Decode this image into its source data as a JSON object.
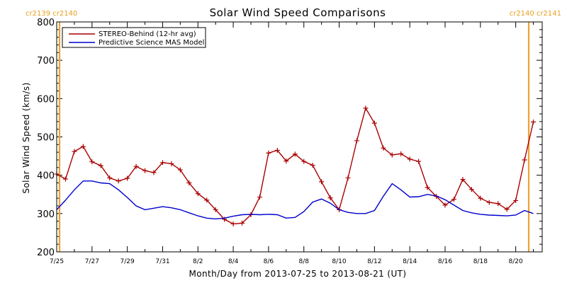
{
  "chart_data": {
    "type": "line",
    "title": "Solar Wind Speed Comparisons",
    "xlabel": "Month/Day from 2013-07-25 to 2013-08-21 (UT)",
    "ylabel": "Solar Wind Speed (km/s)",
    "x_range": [
      "2013-07-25",
      "2013-08-21"
    ],
    "ylim": [
      200,
      800
    ],
    "yticks": [
      200,
      300,
      400,
      500,
      600,
      700,
      800
    ],
    "xtick_dates": [
      "2013-07-25",
      "2013-07-27",
      "2013-07-29",
      "2013-07-31",
      "2013-08-02",
      "2013-08-04",
      "2013-08-06",
      "2013-08-08",
      "2013-08-10",
      "2013-08-12",
      "2013-08-14",
      "2013-08-16",
      "2013-08-18",
      "2013-08-20"
    ],
    "xtick_labels": [
      "7/25",
      "7/27",
      "7/29",
      "7/31",
      "8/2",
      "8/4",
      "8/6",
      "8/8",
      "8/10",
      "8/12",
      "8/14",
      "8/16",
      "8/18",
      "8/20"
    ],
    "carrington_markers": [
      {
        "date": "2013-07-25",
        "label": "cr2139 cr2140",
        "position": "left"
      },
      {
        "date": "2013-08-21",
        "label": "cr2140 cr2141",
        "position": "right"
      }
    ],
    "legend_position": "top-left",
    "series": [
      {
        "name": "STEREO-Behind (12-hr avg)",
        "color": "#aa0000",
        "markers": "plus",
        "x": [
          "2013-07-25 00:00",
          "2013-07-25 12:00",
          "2013-07-26 00:00",
          "2013-07-26 12:00",
          "2013-07-27 00:00",
          "2013-07-27 12:00",
          "2013-07-28 00:00",
          "2013-07-28 12:00",
          "2013-07-29 00:00",
          "2013-07-29 12:00",
          "2013-07-30 00:00",
          "2013-07-30 12:00",
          "2013-07-31 00:00",
          "2013-07-31 12:00",
          "2013-08-01 00:00",
          "2013-08-01 12:00",
          "2013-08-02 00:00",
          "2013-08-02 12:00",
          "2013-08-03 00:00",
          "2013-08-03 12:00",
          "2013-08-04 00:00",
          "2013-08-04 12:00",
          "2013-08-05 00:00",
          "2013-08-05 12:00",
          "2013-08-06 00:00",
          "2013-08-06 12:00",
          "2013-08-07 00:00",
          "2013-08-07 12:00",
          "2013-08-08 00:00",
          "2013-08-08 12:00",
          "2013-08-09 00:00",
          "2013-08-09 12:00",
          "2013-08-10 00:00",
          "2013-08-10 12:00",
          "2013-08-11 00:00",
          "2013-08-11 12:00",
          "2013-08-12 00:00",
          "2013-08-12 12:00",
          "2013-08-13 00:00",
          "2013-08-13 12:00",
          "2013-08-14 00:00",
          "2013-08-14 12:00",
          "2013-08-15 00:00",
          "2013-08-15 12:00",
          "2013-08-16 00:00",
          "2013-08-16 12:00",
          "2013-08-17 00:00",
          "2013-08-17 12:00",
          "2013-08-18 00:00",
          "2013-08-18 12:00",
          "2013-08-19 00:00",
          "2013-08-19 12:00",
          "2013-08-20 00:00",
          "2013-08-20 12:00",
          "2013-08-21 00:00",
          "2013-08-21 12:00"
        ],
        "values": [
          403,
          390,
          462,
          475,
          435,
          425,
          393,
          385,
          392,
          423,
          412,
          407,
          433,
          430,
          414,
          380,
          352,
          335,
          310,
          285,
          273,
          275,
          297,
          343,
          458,
          465,
          437,
          455,
          436,
          426,
          383,
          341,
          310,
          393,
          490,
          575,
          536,
          471,
          453,
          456,
          442,
          436,
          368,
          345,
          322,
          337,
          389,
          363,
          340,
          329,
          326,
          311,
          334,
          440,
          539,
          null
        ]
      },
      {
        "name": "Predictive Science MAS Model",
        "color": "#0000cc",
        "markers": "none",
        "x": [
          "2013-07-25 00:00",
          "2013-07-25 12:00",
          "2013-07-26 00:00",
          "2013-07-26 12:00",
          "2013-07-27 00:00",
          "2013-07-27 12:00",
          "2013-07-28 00:00",
          "2013-07-28 12:00",
          "2013-07-29 00:00",
          "2013-07-29 12:00",
          "2013-07-30 00:00",
          "2013-07-30 12:00",
          "2013-07-31 00:00",
          "2013-07-31 12:00",
          "2013-08-01 00:00",
          "2013-08-01 12:00",
          "2013-08-02 00:00",
          "2013-08-02 12:00",
          "2013-08-03 00:00",
          "2013-08-03 12:00",
          "2013-08-04 00:00",
          "2013-08-04 12:00",
          "2013-08-05 00:00",
          "2013-08-05 12:00",
          "2013-08-06 00:00",
          "2013-08-06 12:00",
          "2013-08-07 00:00",
          "2013-08-07 12:00",
          "2013-08-08 00:00",
          "2013-08-08 12:00",
          "2013-08-09 00:00",
          "2013-08-09 12:00",
          "2013-08-10 00:00",
          "2013-08-10 12:00",
          "2013-08-11 00:00",
          "2013-08-11 12:00",
          "2013-08-12 00:00",
          "2013-08-12 12:00",
          "2013-08-13 00:00",
          "2013-08-13 12:00",
          "2013-08-14 00:00",
          "2013-08-14 12:00",
          "2013-08-15 00:00",
          "2013-08-15 12:00",
          "2013-08-16 00:00",
          "2013-08-16 12:00",
          "2013-08-17 00:00",
          "2013-08-17 12:00",
          "2013-08-18 00:00",
          "2013-08-18 12:00",
          "2013-08-19 00:00",
          "2013-08-19 12:00",
          "2013-08-20 00:00",
          "2013-08-20 12:00",
          "2013-08-21 00:00"
        ],
        "values": [
          310,
          335,
          362,
          385,
          385,
          380,
          378,
          362,
          342,
          320,
          310,
          314,
          318,
          315,
          310,
          302,
          294,
          288,
          286,
          288,
          293,
          297,
          298,
          297,
          298,
          297,
          288,
          290,
          305,
          330,
          338,
          327,
          310,
          303,
          300,
          300,
          308,
          345,
          378,
          362,
          343,
          344,
          350,
          346,
          336,
          322,
          308,
          302,
          298,
          296,
          295,
          294,
          296,
          308,
          300
        ]
      }
    ]
  }
}
